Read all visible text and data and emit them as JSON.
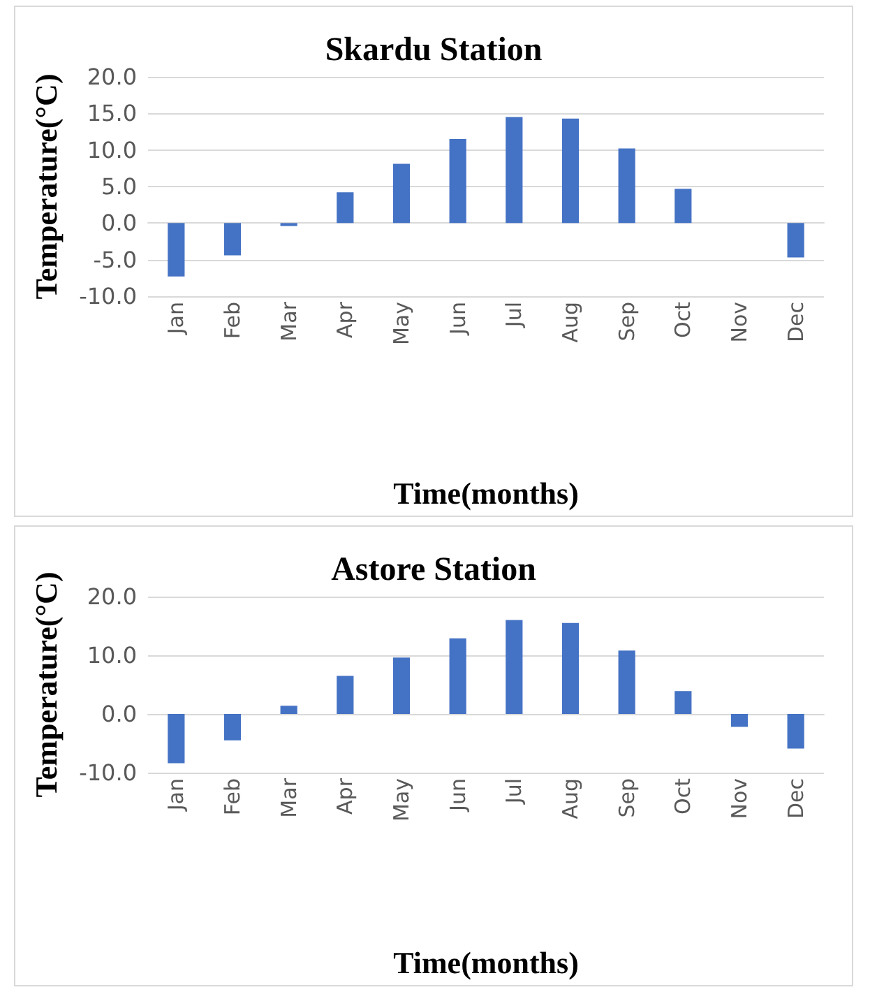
{
  "chart_data": [
    {
      "type": "bar",
      "title": "Skardu Station",
      "xlabel": "Time(months)",
      "ylabel": "Temperature(°C)",
      "categories": [
        "Jan",
        "Feb",
        "Mar",
        "Apr",
        "May",
        "Jun",
        "Jul",
        "Aug",
        "Sep",
        "Oct",
        "Nov",
        "Dec"
      ],
      "series": [
        {
          "color": "#4472c4",
          "values": [
            -7.3,
            -4.4,
            -0.4,
            4.2,
            8.1,
            11.5,
            14.5,
            14.3,
            10.2,
            4.7,
            0,
            -4.7
          ]
        }
      ],
      "ylim": [
        -10,
        20
      ],
      "yticks": [
        {
          "value": -10,
          "label": "-10.0"
        },
        {
          "value": -5,
          "label": "-5.0"
        },
        {
          "value": 0,
          "label": "0.0"
        },
        {
          "value": 5,
          "label": "5.0"
        },
        {
          "value": 10,
          "label": "10.0"
        },
        {
          "value": 15,
          "label": "15.0"
        },
        {
          "value": 20,
          "label": "20.0"
        }
      ],
      "grid": "y"
    },
    {
      "type": "bar",
      "title": "Astore Station",
      "xlabel": "Time(months)",
      "ylabel": "Temperature(°C)",
      "categories": [
        "Jan",
        "Feb",
        "Mar",
        "Apr",
        "May",
        "Jun",
        "Jul",
        "Aug",
        "Sep",
        "Oct",
        "Nov",
        "Dec"
      ],
      "series": [
        {
          "color": "#4472c4",
          "values": [
            -8.4,
            -4.5,
            1.4,
            6.5,
            9.6,
            12.9,
            16.0,
            15.5,
            10.8,
            3.9,
            -2.2,
            -5.9
          ]
        }
      ],
      "ylim": [
        -10,
        20
      ],
      "yticks": [
        {
          "value": -10,
          "label": "-10.0"
        },
        {
          "value": 0,
          "label": "0.0"
        },
        {
          "value": 10,
          "label": "10.0"
        },
        {
          "value": 20,
          "label": "20.0"
        }
      ],
      "grid": "y"
    }
  ]
}
